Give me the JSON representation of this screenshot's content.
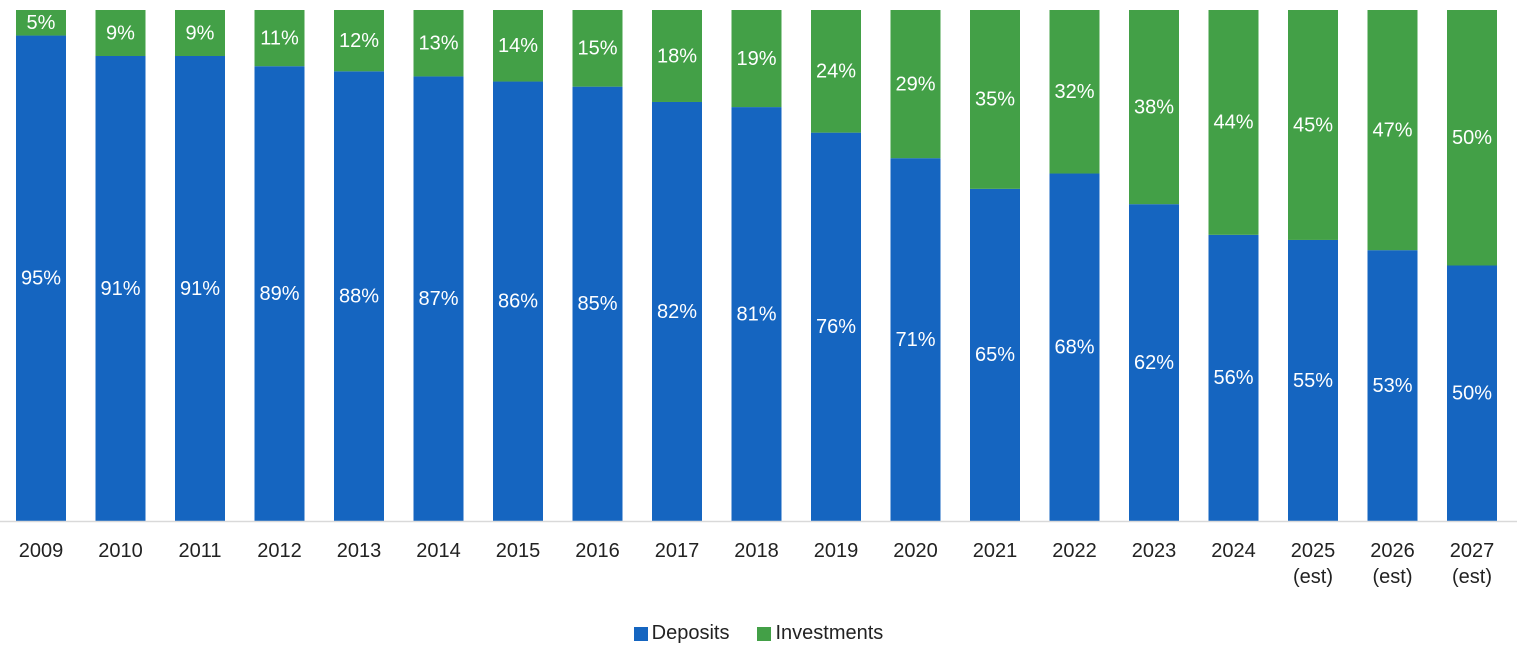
{
  "chart_data": {
    "type": "stacked_bar",
    "categories": [
      "2009",
      "2010",
      "2011",
      "2012",
      "2013",
      "2014",
      "2015",
      "2016",
      "2017",
      "2018",
      "2019",
      "2020",
      "2021",
      "2022",
      "2023",
      "2024",
      "2025 (est)",
      "2026 (est)",
      "2027 (est)"
    ],
    "series": [
      {
        "name": "Deposits",
        "color": "#1565c0",
        "values": [
          95,
          91,
          91,
          89,
          88,
          87,
          86,
          85,
          82,
          81,
          76,
          71,
          65,
          68,
          62,
          56,
          55,
          53,
          50
        ],
        "value_labels": [
          "95%",
          "91%",
          "91%",
          "89%",
          "88%",
          "87%",
          "86%",
          "85%",
          "82%",
          "81%",
          "76%",
          "71%",
          "65%",
          "68%",
          "62%",
          "56%",
          "55%",
          "53%",
          "50%"
        ]
      },
      {
        "name": "Investments",
        "color": "#43a047",
        "values": [
          5,
          9,
          9,
          11,
          12,
          13,
          14,
          15,
          18,
          19,
          24,
          29,
          35,
          32,
          38,
          44,
          45,
          47,
          50
        ],
        "value_labels": [
          "5%",
          "9%",
          "9%",
          "11%",
          "12%",
          "13%",
          "14%",
          "15%",
          "18%",
          "19%",
          "24%",
          "29%",
          "35%",
          "32%",
          "38%",
          "44%",
          "45%",
          "47%",
          "50%"
        ]
      }
    ],
    "ylim": [
      0,
      100
    ]
  }
}
